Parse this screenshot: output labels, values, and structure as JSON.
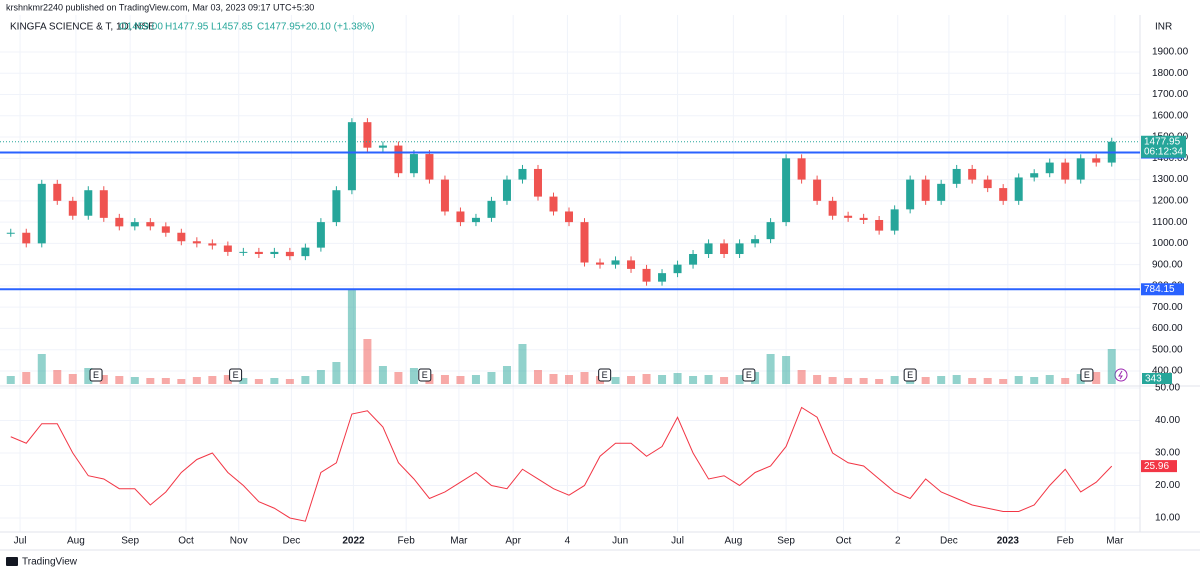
{
  "header": {
    "publisher": "krshnkmr2240 published on TradingView.com, Mar 03, 2023 09:17 UTC+5:30",
    "symbol": "KINGFA SCIENCE & T, 1D, NSE",
    "open": "O1459.00",
    "high": "H1477.95",
    "low": "L1457.85",
    "close": "C1477.95",
    "change": "+20.10 (+1.38%)",
    "currency": "INR",
    "countdown": "06:12:34",
    "volume_tag": "343",
    "footer": "TradingView"
  },
  "chart_data": [
    {
      "type": "candlestick",
      "x": [
        0,
        1,
        2,
        3,
        4,
        5,
        6,
        7,
        8,
        9,
        10,
        11,
        12,
        13,
        14,
        15,
        16,
        17,
        18,
        19,
        20,
        21,
        22,
        23,
        24,
        25,
        26,
        27,
        28,
        29,
        30,
        31,
        32,
        33,
        34,
        35,
        36,
        37,
        38,
        39,
        40,
        41,
        42,
        43,
        44,
        45,
        46,
        47,
        48,
        49,
        50,
        51,
        52,
        53,
        54,
        55,
        56,
        57,
        58,
        59,
        60,
        61,
        62,
        63,
        64,
        65,
        66,
        67,
        68,
        69,
        70,
        71
      ],
      "values": [
        1050,
        1000,
        1280,
        1200,
        1130,
        1250,
        1120,
        1080,
        1100,
        1080,
        1050,
        1010,
        1000,
        990,
        960,
        960,
        950,
        960,
        940,
        980,
        1100,
        1250,
        1570,
        1450,
        1460,
        1330,
        1420,
        1300,
        1150,
        1100,
        1120,
        1200,
        1300,
        1350,
        1220,
        1150,
        1100,
        910,
        900,
        920,
        880,
        820,
        860,
        900,
        950,
        1000,
        950,
        1000,
        1020,
        1100,
        1400,
        1300,
        1200,
        1130,
        1120,
        1110,
        1060,
        1160,
        1300,
        1200,
        1280,
        1350,
        1300,
        1260,
        1200,
        1310,
        1330,
        1380,
        1300,
        1400,
        1380,
        1477.95
      ],
      "volume": [
        8,
        12,
        30,
        14,
        10,
        16,
        9,
        8,
        7,
        6,
        6,
        5,
        7,
        8,
        9,
        6,
        5,
        6,
        5,
        8,
        14,
        22,
        95,
        45,
        18,
        12,
        16,
        10,
        9,
        8,
        9,
        12,
        18,
        40,
        14,
        10,
        9,
        12,
        8,
        7,
        8,
        10,
        9,
        11,
        8,
        9,
        7,
        9,
        12,
        30,
        28,
        14,
        9,
        7,
        6,
        6,
        5,
        8,
        10,
        7,
        8,
        9,
        6,
        6,
        5,
        8,
        7,
        9,
        6,
        10,
        12,
        35
      ],
      "xlim": [
        -0.5,
        72.5
      ],
      "ylim": [
        334,
        2074
      ],
      "yticks": [
        {
          "value": 400,
          "label": "400.00"
        },
        {
          "value": 500,
          "label": "500.00"
        },
        {
          "value": 600,
          "label": "600.00"
        },
        {
          "value": 700,
          "label": "700.00"
        },
        {
          "value": 800,
          "label": "800.00"
        },
        {
          "value": 900,
          "label": "900.00"
        },
        {
          "value": 1000,
          "label": "1000.00"
        },
        {
          "value": 1100,
          "label": "1100.00"
        },
        {
          "value": 1200,
          "label": "1200.00"
        },
        {
          "value": 1300,
          "label": "1300.00"
        },
        {
          "value": 1400,
          "label": "1400.00"
        },
        {
          "value": 1500,
          "label": "1500.00"
        },
        {
          "value": 1600,
          "label": "1600.00"
        },
        {
          "value": 1700,
          "label": "1700.00"
        },
        {
          "value": 1800,
          "label": "1800.00"
        },
        {
          "value": 1900,
          "label": "1900.00"
        }
      ],
      "xticks": [
        {
          "value": 0.6,
          "label": "Jul"
        },
        {
          "value": 4.2,
          "label": "Aug"
        },
        {
          "value": 7.7,
          "label": "Sep"
        },
        {
          "value": 11.3,
          "label": "Oct"
        },
        {
          "value": 14.7,
          "label": "Nov"
        },
        {
          "value": 18.1,
          "label": "Dec"
        },
        {
          "value": 22.1,
          "label": "2022"
        },
        {
          "value": 25.5,
          "label": "Feb"
        },
        {
          "value": 28.9,
          "label": "Mar"
        },
        {
          "value": 32.4,
          "label": "Apr"
        },
        {
          "value": 35.9,
          "label": "4"
        },
        {
          "value": 39.3,
          "label": "Jun"
        },
        {
          "value": 43.0,
          "label": "Jul"
        },
        {
          "value": 46.6,
          "label": "Aug"
        },
        {
          "value": 50.0,
          "label": "Sep"
        },
        {
          "value": 53.7,
          "label": "Oct"
        },
        {
          "value": 57.2,
          "label": "2"
        },
        {
          "value": 60.5,
          "label": "Dec"
        },
        {
          "value": 64.3,
          "label": "2023"
        },
        {
          "value": 68.0,
          "label": "Feb"
        },
        {
          "value": 71.2,
          "label": "Mar"
        }
      ],
      "hlines": [
        1427.15,
        784.15
      ],
      "hline_color": "#2962ff",
      "events": [
        "E",
        "E",
        "E",
        "E",
        "E",
        "E",
        "E"
      ],
      "event_x": [
        5.5,
        14.5,
        26.7,
        38.3,
        47.6,
        58.0,
        69.4
      ],
      "up_color": "#26a69a",
      "down_color": "#ef5350",
      "grid": true
    },
    {
      "type": "line",
      "color": "#f23645",
      "values": [
        35,
        33,
        39,
        39,
        30,
        23,
        22,
        19,
        19,
        14,
        18,
        24,
        28,
        30,
        24,
        20,
        15,
        13,
        10,
        9,
        24,
        27,
        42,
        43,
        38,
        27,
        22,
        16,
        18,
        21,
        24,
        20,
        19,
        25,
        22,
        19,
        17,
        20,
        29,
        33,
        33,
        29,
        32,
        41,
        30,
        22,
        23,
        20,
        24,
        26,
        32,
        44,
        41,
        30,
        27,
        26,
        22,
        18,
        16,
        22,
        18,
        16,
        14,
        13,
        12,
        12,
        14,
        20,
        25,
        18,
        21,
        25.96
      ],
      "ylim": [
        6.3,
        50
      ],
      "yticks": [
        {
          "value": 10,
          "label": "10.00"
        },
        {
          "value": 20,
          "label": "20.00"
        },
        {
          "value": 30,
          "label": "30.00"
        },
        {
          "value": 40,
          "label": "40.00"
        },
        {
          "value": 50,
          "label": "50.00"
        }
      ]
    }
  ]
}
